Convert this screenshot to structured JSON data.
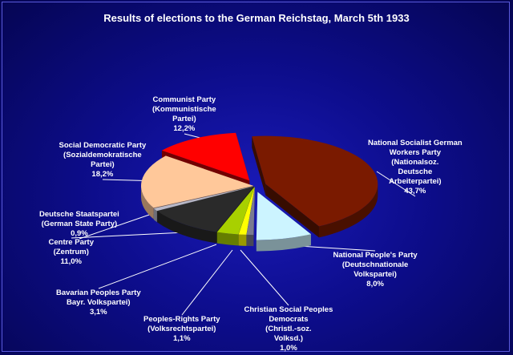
{
  "chart_data": {
    "type": "pie",
    "title": "Results of elections to the German Reichstag, March 5th 1933",
    "slices": [
      {
        "name": "National Socialist German Workers Party",
        "label_lines": [
          "National Socialist German",
          "Workers Party",
          "(Nationalsoz.",
          "Deutsche",
          "Arbeiterpartei)"
        ],
        "value": 43.7,
        "value_text": "43,7%",
        "color": "#7a1a00",
        "exploded": true
      },
      {
        "name": "National People's Party",
        "label_lines": [
          "National People's Party",
          "(Deutschnationale",
          "Volkspartei)"
        ],
        "value": 8.0,
        "value_text": "8,0%",
        "color": "#ccf4ff",
        "exploded": true
      },
      {
        "name": "Christian Social Peoples Democrats",
        "label_lines": [
          "Christian Social Peoples",
          "Democrats",
          "(Christl.-soz.",
          "Volksd.)"
        ],
        "value": 1.0,
        "value_text": "1,0%",
        "color": "#7a7a90",
        "exploded": false
      },
      {
        "name": "Peoples-Rights Party",
        "label_lines": [
          "Peoples-Rights Party",
          "(Volksrechtspartei)"
        ],
        "value": 1.1,
        "value_text": "1,1%",
        "color": "#ffff00",
        "exploded": false
      },
      {
        "name": "Bavarian Peoples Party",
        "label_lines": [
          "Bavarian Peoples Party",
          "Bayr. Volkspartei)"
        ],
        "value": 3.1,
        "value_text": "3,1%",
        "color": "#a8d000",
        "exploded": false
      },
      {
        "name": "Centre Party",
        "label_lines": [
          "Centre Party",
          "(Zentrum)"
        ],
        "value": 11.0,
        "value_text": "11,0%",
        "color": "#2a2a2a",
        "exploded": false
      },
      {
        "name": "Deutsche Staatspartei",
        "label_lines": [
          "Deutsche Staatspartei",
          "(German State Party)"
        ],
        "value": 0.9,
        "value_text": "0,9%",
        "color": "#b8b8c8",
        "exploded": false
      },
      {
        "name": "Social Democratic Party",
        "label_lines": [
          "Social Democratic Party",
          "(Sozialdemokratische",
          "Partei)"
        ],
        "value": 18.2,
        "value_text": "18,2%",
        "color": "#ffc89a",
        "exploded": false
      },
      {
        "name": "Communist Party",
        "label_lines": [
          "Communist Party",
          "(Kommunistische",
          "Partei)"
        ],
        "value": 12.2,
        "value_text": "12,2%",
        "color": "#ff0000",
        "exploded": true
      }
    ]
  }
}
